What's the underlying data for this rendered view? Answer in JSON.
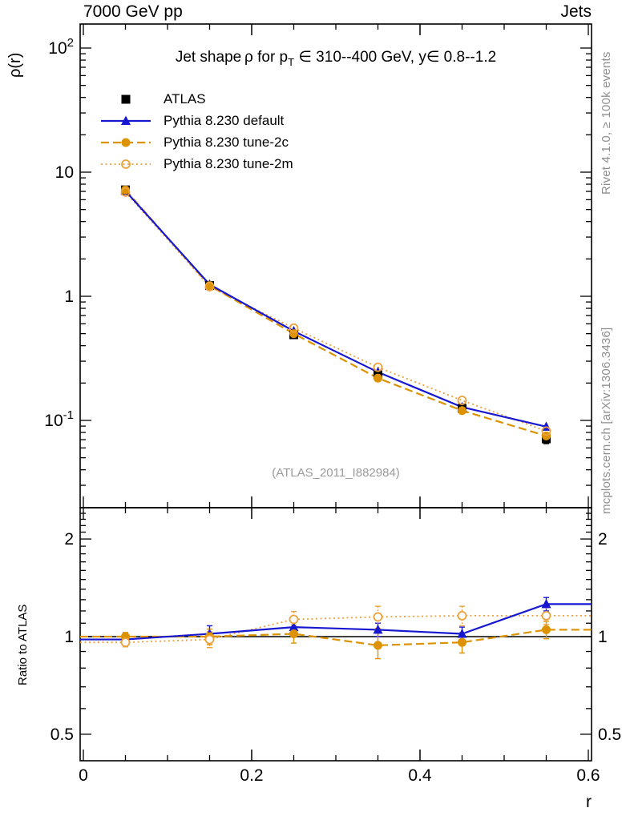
{
  "header": {
    "beam": "7000 GeV pp",
    "process": "Jets"
  },
  "side_notes": {
    "rivet": "Rivet 4.1.0, ≥ 100k events",
    "mcplots": "mcplots.cern.ch [arXiv:1306.3436]"
  },
  "watermark": "(ATLAS_2011_I882984)",
  "chart_data": {
    "type": "line",
    "title": {
      "pre": "Jet shape ρ for p",
      "sub": "T",
      "post": " ∈ 310--400 GeV, y∈ 0.8--1.2"
    },
    "xlabel": "r",
    "ylabel": "ρ(r)",
    "ratio_ylabel": "Ratio to ATLAS",
    "x": [
      0.05,
      0.15,
      0.25,
      0.35,
      0.45,
      0.55
    ],
    "xlim": [
      0,
      0.6
    ],
    "ylim_main": [
      0.022,
      140
    ],
    "ylim_ratio": [
      0.41,
      2.5
    ],
    "y_scale": "log",
    "xticks": [
      {
        "v": 0,
        "label": "0"
      },
      {
        "v": 0.2,
        "label": "0.2"
      },
      {
        "v": 0.4,
        "label": "0.4"
      },
      {
        "v": 0.6,
        "label": "0.6"
      }
    ],
    "yticks_main": [
      {
        "v": 100,
        "base": "10",
        "exp": "2"
      },
      {
        "v": 10,
        "base": "10",
        "exp": ""
      },
      {
        "v": 1,
        "base": "1",
        "exp": ""
      },
      {
        "v": 0.1,
        "base": "10",
        "exp": "-1"
      }
    ],
    "yticks_ratio": [
      {
        "v": 2,
        "label": "2"
      },
      {
        "v": 1,
        "label": "1"
      },
      {
        "v": 0.5,
        "label": "0.5"
      }
    ],
    "series": [
      {
        "name": "ATLAS",
        "kind": "data",
        "color": "#000000",
        "marker": "square",
        "line": "none",
        "values": [
          7.2,
          1.22,
          0.49,
          0.233,
          0.125,
          0.071
        ],
        "errors": [
          0.18,
          0.035,
          0.018,
          0.012,
          0.008,
          0.006
        ]
      },
      {
        "name": "Pythia 8.230 default",
        "kind": "mc",
        "color": "#1717d1",
        "marker": "triangle",
        "line": "solid",
        "values": [
          7.06,
          1.245,
          0.524,
          0.245,
          0.128,
          0.089
        ],
        "ratio": [
          0.98,
          1.02,
          1.07,
          1.05,
          1.02,
          1.26
        ],
        "ratio_errors": [
          0.025,
          0.06,
          0.05,
          0.05,
          0.05,
          0.06
        ]
      },
      {
        "name": "Pythia 8.230 tune-2c",
        "kind": "mc",
        "color": "#dd9300",
        "marker": "circle-filled",
        "line": "dashed",
        "values": [
          7.2,
          1.22,
          0.5,
          0.219,
          0.12,
          0.075
        ],
        "ratio": [
          1.0,
          1.0,
          1.02,
          0.94,
          0.96,
          1.05
        ],
        "ratio_errors": [
          0.03,
          0.055,
          0.065,
          0.085,
          0.07,
          0.065
        ]
      },
      {
        "name": "Pythia 8.230 tune-2m",
        "kind": "mc",
        "color": "#eda13e",
        "marker": "circle-open",
        "line": "dotted",
        "values": [
          6.91,
          1.196,
          0.554,
          0.268,
          0.145,
          0.082
        ],
        "ratio": [
          0.96,
          0.98,
          1.13,
          1.15,
          1.16,
          1.16
        ],
        "ratio_errors": [
          0.03,
          0.055,
          0.065,
          0.09,
          0.08,
          0.07
        ]
      }
    ],
    "legend_position": "top-left-inside",
    "grid": false
  }
}
